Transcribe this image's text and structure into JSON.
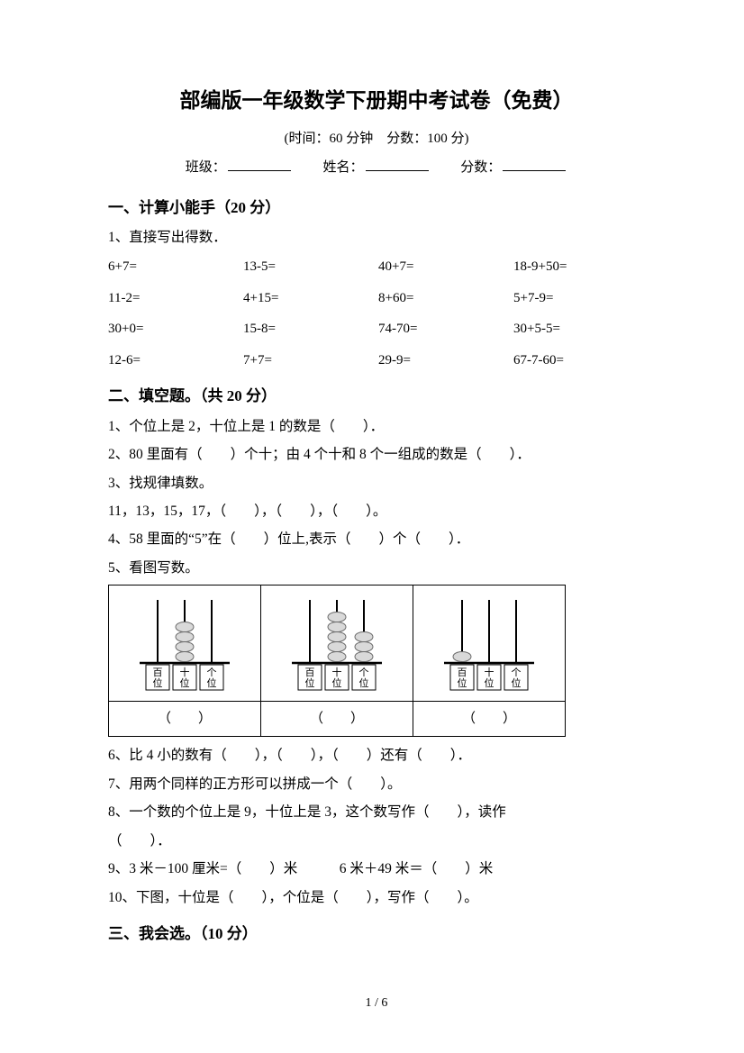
{
  "doc": {
    "title": "部编版一年级数学下册期中考试卷（免费）",
    "subtitle": "(时间：60 分钟　分数：100 分)",
    "meta": {
      "class_lbl": "班级：",
      "name_lbl": "姓名：",
      "score_lbl": "分数："
    }
  },
  "s1": {
    "heading": "一、计算小能手（20 分）",
    "q1_label": "1、直接写出得数．",
    "grid": [
      [
        "6+7=",
        "13-5=",
        "40+7=",
        "18-9+50="
      ],
      [
        "11-2=",
        "4+15=",
        "8+60=",
        "5+7-9="
      ],
      [
        "30+0=",
        "15-8=",
        "74-70=",
        "30+5-5="
      ],
      [
        "12-6=",
        "7+7=",
        "29-9=",
        "67-7-60="
      ]
    ]
  },
  "s2": {
    "heading": "二、填空题。（共 20 分）",
    "q1": "1、个位上是 2，十位上是 1 的数是（　　）．",
    "q2": "2、80 里面有（　　）个十；由 4 个十和 8 个一组成的数是（　　）．",
    "q3a": "3、找规律填数。",
    "q3b": "11，13，15，17，（　　），（　　），（　　）。",
    "q4": "4、58 里面的“5”在（　　）位上,表示（　　）个（　　）．",
    "q5a": "5、看图写数。",
    "abacus": {
      "labels": [
        "百位",
        "十位",
        "个位"
      ],
      "rod_color": "#000000",
      "bead_fill": "#d9d9d9",
      "bead_stroke": "#6a6a6a",
      "cells": [
        {
          "beads": [
            0,
            4,
            0
          ]
        },
        {
          "beads": [
            0,
            5,
            3
          ]
        },
        {
          "beads": [
            1,
            0,
            0
          ]
        }
      ],
      "answer_ph": "（　　）"
    },
    "q6": "6、比 4 小的数有（　　），（　　），（　　）还有（　　）．",
    "q7": "7、用两个同样的正方形可以拼成一个（　　）。",
    "q8a": "8、一个数的个位上是 9，十位上是 3，这个数写作（　　），读作",
    "q8b": "（　　）．",
    "q9": "9、3 米－100 厘米=（　　）米　　　6 米＋49 米＝（　　）米",
    "q10": "10、下图，十位是（　　），个位是（　　），写作（　　）。"
  },
  "s3": {
    "heading": "三、我会选。（10 分）"
  },
  "pager": "1 / 6"
}
